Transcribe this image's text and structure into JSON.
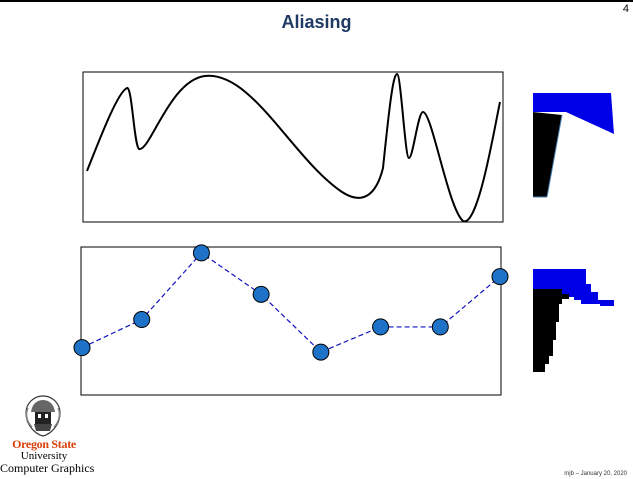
{
  "slide": {
    "title": "Aliasing",
    "page_number": "4",
    "footer": "mjb – January 20, 2020"
  },
  "branding": {
    "university_name": "Oregon State",
    "university_word": "University",
    "department": "Computer Graphics",
    "logo_icon": "osu-seal-icon",
    "accent_color": "#d73f09"
  },
  "colors": {
    "title": "#1f3a64",
    "sample_point": "#1e73c8",
    "dashed_line": "#1010c0",
    "swatch_blue": "#0000e6",
    "swatch_black": "#000000"
  },
  "sample_values": [
    0.32,
    0.51,
    0.96,
    0.68,
    0.29,
    0.46,
    0.46,
    0.8
  ]
}
